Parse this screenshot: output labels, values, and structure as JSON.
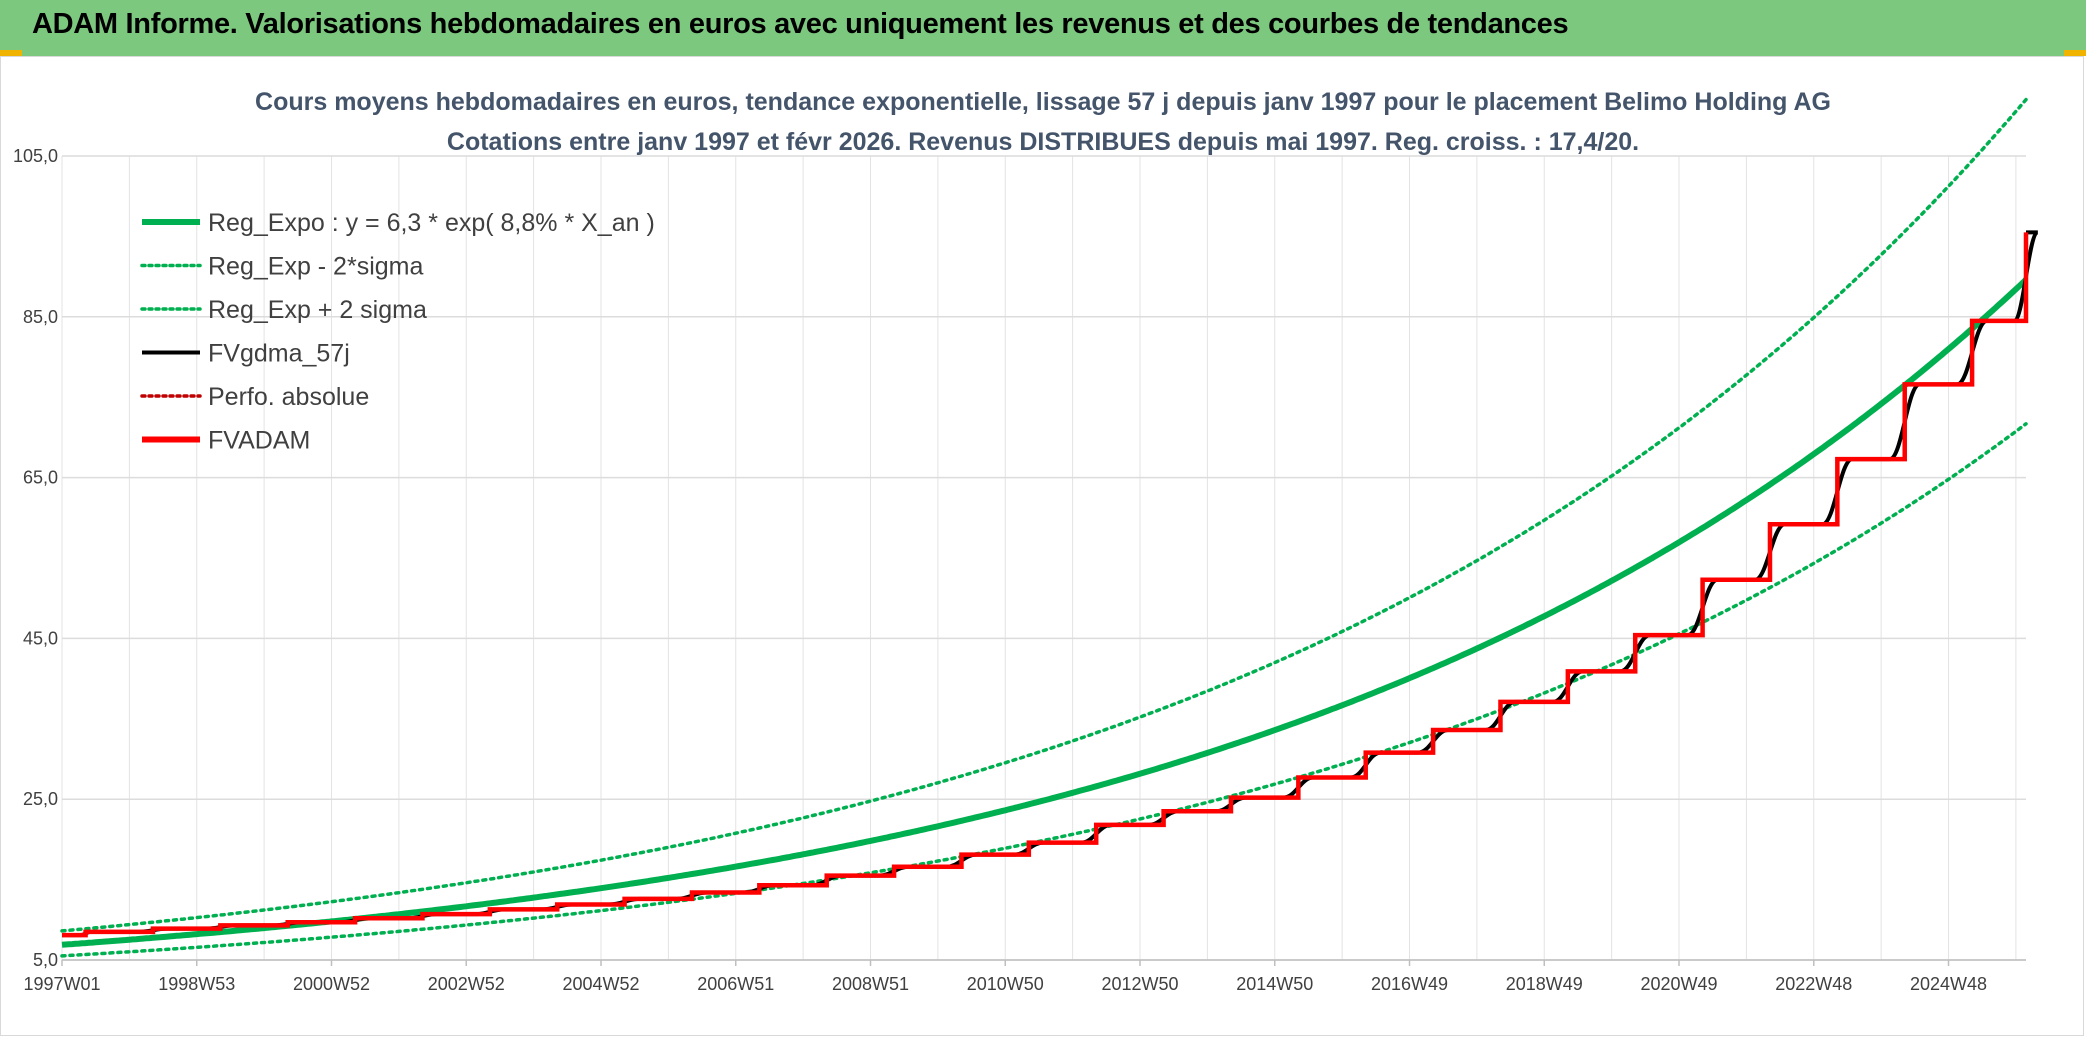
{
  "header": {
    "title": "ADAM Informe. Valorisations hebdomadaires en euros avec uniquement les revenus et des courbes de tendances"
  },
  "colors": {
    "banner": "#7dc87f",
    "reg": "#00b050",
    "fv": "#000000",
    "adam": "#ff0000",
    "perfo": "#c00000"
  },
  "chart_data": {
    "type": "line",
    "title": "Cours moyens hebdomadaires en euros, tendance exponentielle, lissage 57 j depuis janv 1997 pour le placement Belimo Holding AG",
    "subtitle": "Cotations entre janv 1997 et févr 2026. Revenus DISTRIBUES depuis mai 1997. Reg. croiss. : 17,4/20.",
    "xlabel": "",
    "ylabel": "",
    "x_range": [
      1997.0,
      2026.15
    ],
    "ylim": [
      5,
      105
    ],
    "y_ticks": [
      "5,0",
      "25,0",
      "45,0",
      "65,0",
      "85,0",
      "105,0"
    ],
    "x_ticks": [
      {
        "label": "1997W01",
        "x": 1997.0
      },
      {
        "label": "1998W53",
        "x": 1999.0
      },
      {
        "label": "2000W52",
        "x": 2001.0
      },
      {
        "label": "2002W52",
        "x": 2003.0
      },
      {
        "label": "2004W52",
        "x": 2005.0
      },
      {
        "label": "2006W51",
        "x": 2007.0
      },
      {
        "label": "2008W51",
        "x": 2009.0
      },
      {
        "label": "2010W50",
        "x": 2011.0
      },
      {
        "label": "2012W50",
        "x": 2013.0
      },
      {
        "label": "2014W50",
        "x": 2015.0
      },
      {
        "label": "2016W49",
        "x": 2017.0
      },
      {
        "label": "2018W49",
        "x": 2019.0
      },
      {
        "label": "2020W49",
        "x": 2021.0
      },
      {
        "label": "2022W48",
        "x": 2023.0
      },
      {
        "label": "2024W48",
        "x": 2025.0
      }
    ],
    "regression": {
      "a": 6.3,
      "rate": 0.088,
      "sigma_mult": 0.8,
      "sigma_mult_upper": 1.25
    },
    "legend": [
      {
        "label": "Reg_Expo : y = 6,3 * exp( 8,8% *  X_an )",
        "style": "solid-thick",
        "color": "#00b050"
      },
      {
        "label": "Reg_Exp - 2*sigma",
        "style": "dotted",
        "color": "#00b050"
      },
      {
        "label": "Reg_Exp + 2 sigma",
        "style": "dotted",
        "color": "#00b050"
      },
      {
        "label": "FVgdma_57j",
        "style": "solid",
        "color": "#000000"
      },
      {
        "label": "Perfo. absolue",
        "style": "dotted",
        "color": "#c00000"
      },
      {
        "label": "FVADAM",
        "style": "solid-thick",
        "color": "#ff0000"
      }
    ],
    "series": [
      {
        "name": "FVADAM",
        "type": "step",
        "x": [
          1997.0,
          1997.35,
          1998.35,
          1999.35,
          2000.35,
          2001.35,
          2002.35,
          2003.35,
          2004.35,
          2005.35,
          2006.35,
          2007.35,
          2008.35,
          2009.35,
          2010.35,
          2011.35,
          2012.35,
          2013.35,
          2014.35,
          2015.35,
          2016.35,
          2017.35,
          2018.35,
          2019.35,
          2020.35,
          2021.35,
          2022.35,
          2023.35,
          2024.35,
          2025.35,
          2026.15
        ],
        "values": [
          8.1,
          8.5,
          8.9,
          9.3,
          9.7,
          10.2,
          10.7,
          11.3,
          11.9,
          12.6,
          13.4,
          14.3,
          15.5,
          16.6,
          18.1,
          19.6,
          21.8,
          23.5,
          25.2,
          27.7,
          30.8,
          33.6,
          37.1,
          40.9,
          45.4,
          52.3,
          59.2,
          67.3,
          76.6,
          84.5,
          95.5
        ]
      }
    ]
  }
}
